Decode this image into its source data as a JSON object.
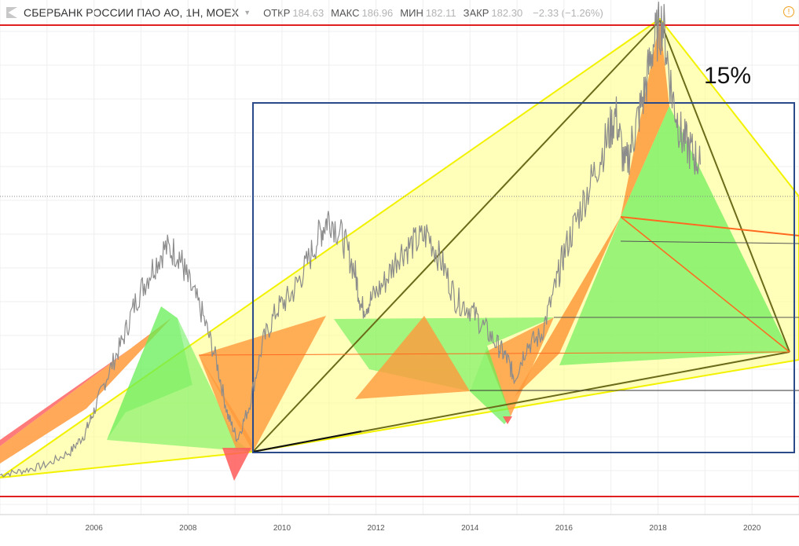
{
  "header": {
    "title": "СБЕРБАНК РОССИИ ПАО АО, 1Н, MOEX",
    "open_label": "ОТКР",
    "open_value": "184.63",
    "high_label": "МАКС",
    "high_value": "186.96",
    "low_label": "МИН",
    "low_value": "182.11",
    "close_label": "ЗАКР",
    "close_value": "182.30",
    "change": "−2.33 (−1.26%)",
    "alert_icon": "alert-clock-icon"
  },
  "chart_data": {
    "type": "line",
    "title": "СБЕРБАНК РОССИИ ПАО АО, 1Н, MOEX",
    "xlabel": "",
    "ylabel": "",
    "xlim": [
      2004.0,
      2021.0
    ],
    "ylim": [
      0,
      100
    ],
    "x_tick_labels": [
      "2006",
      "2008",
      "2010",
      "2012",
      "2014",
      "2016",
      "2018",
      "2020"
    ],
    "grid": true,
    "series": [
      {
        "x": [
          2004.0,
          2004.5,
          2005.0,
          2005.5,
          2005.8,
          2006.0,
          2006.3,
          2006.6,
          2006.9,
          2007.2,
          2007.5,
          2007.8,
          2008.0,
          2008.3,
          2008.6,
          2008.85,
          2009.05,
          2009.3,
          2009.6,
          2009.9,
          2010.2,
          2010.5,
          2010.8,
          2011.0,
          2011.3,
          2011.55,
          2011.7,
          2011.9,
          2012.2,
          2012.5,
          2012.8,
          2013.1,
          2013.4,
          2013.7,
          2014.0,
          2014.3,
          2014.6,
          2014.8,
          2014.95,
          2015.2,
          2015.5,
          2015.8,
          2016.0,
          2016.3,
          2016.6,
          2016.9,
          2017.1,
          2017.3,
          2017.5,
          2017.7,
          2017.9,
          2018.1,
          2018.3,
          2018.5,
          2018.7,
          2018.9
        ],
        "values": [
          2.3,
          3.2,
          4.5,
          7.3,
          11.0,
          16.0,
          24.0,
          31.0,
          40.0,
          46.0,
          51.0,
          50.0,
          44.0,
          37.0,
          27.0,
          15.0,
          10.0,
          17.0,
          31.0,
          38.0,
          41.0,
          47.0,
          54.0,
          58.0,
          53.0,
          46.0,
          38.0,
          40.0,
          44.0,
          50.0,
          52.0,
          54.0,
          48.0,
          40.0,
          38.0,
          34.0,
          30.0,
          27.0,
          23.0,
          30.0,
          32.0,
          42.0,
          50.0,
          58.0,
          66.0,
          74.0,
          80.0,
          68.0,
          76.0,
          84.0,
          95.0,
          100.0,
          84.0,
          75.0,
          72.0,
          69.0
        ]
      }
    ],
    "annotations": [
      {
        "text": "15%"
      }
    ]
  }
}
